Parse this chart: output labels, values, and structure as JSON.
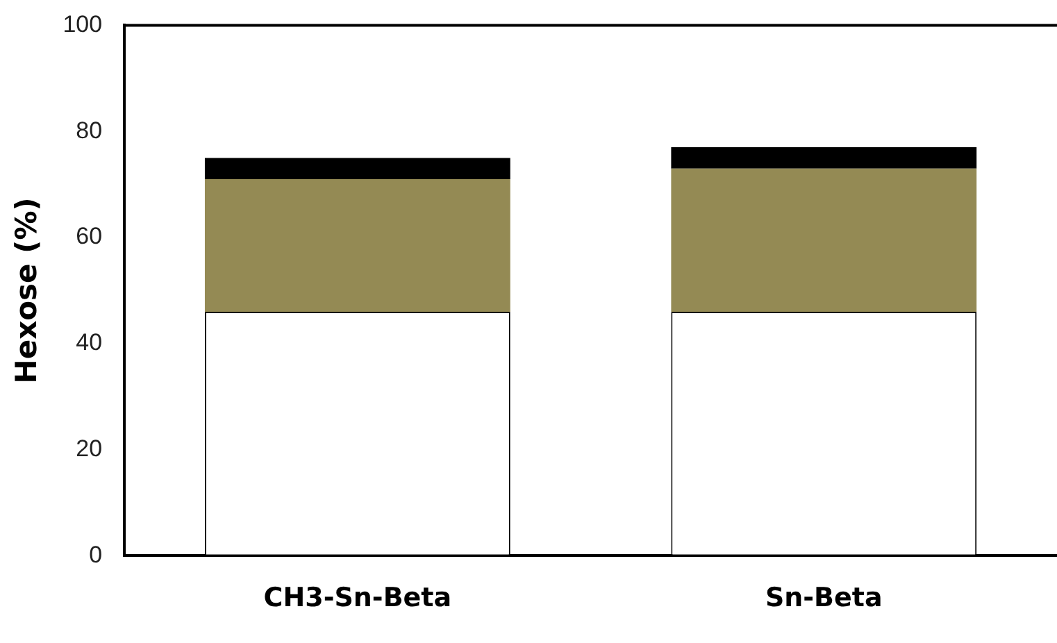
{
  "chart_data": {
    "type": "bar",
    "ylabel": "Hexose (%)",
    "categories": [
      "CH3-Sn-Beta",
      "Sn-Beta"
    ],
    "stacked": true,
    "series": [
      {
        "color": "#ffffff",
        "values": [
          46,
          46
        ]
      },
      {
        "color": "#948a54",
        "values": [
          25,
          27
        ]
      },
      {
        "color": "#000000",
        "values": [
          4,
          4
        ]
      }
    ],
    "ylim": [
      0,
      100
    ],
    "yticks": [
      0,
      20,
      40,
      60,
      80,
      100
    ],
    "grid": false,
    "legend": false
  }
}
